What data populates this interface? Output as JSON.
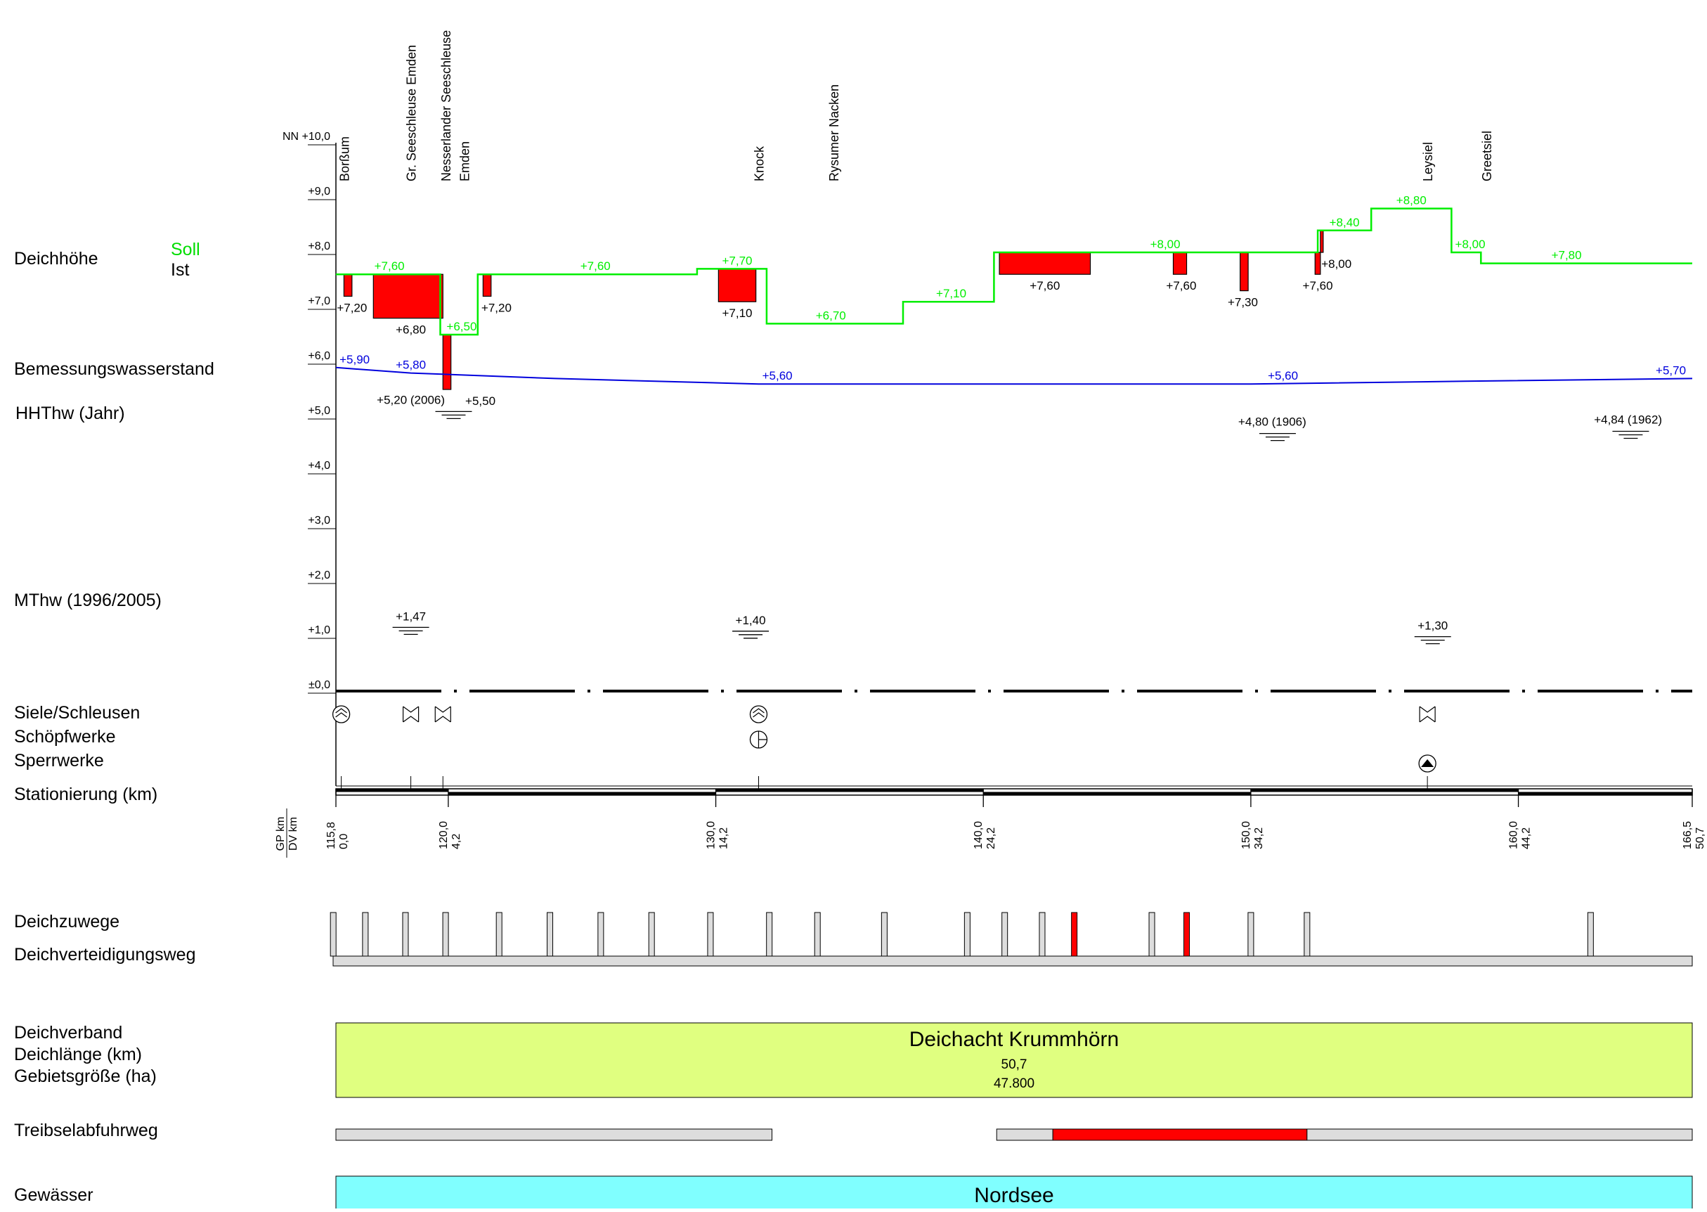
{
  "chart_data": {
    "type": "line",
    "yaxis": {
      "min": 0,
      "max": 10,
      "top_label": "NN +10,0",
      "tick_labels": [
        "±0,0",
        "+1,0",
        "+2,0",
        "+3,0",
        "+4,0",
        "+5,0",
        "+6,0",
        "+7,0",
        "+8,0",
        "+9,0",
        "NN +10,0"
      ]
    },
    "x_range": [
      115.8,
      166.5
    ],
    "row_labels": {
      "deichhoehe": "Deichhöhe",
      "soll": "Soll",
      "ist": "Ist",
      "bemessung": "Bemessungswasserstand",
      "hhthw": "HHThw (Jahr)",
      "mthw": "MThw (1996/2005)",
      "siele": "Siele/Schleusen",
      "schoepfwerke": "Schöpfwerke",
      "sperrwerke": "Sperrwerke",
      "stationierung": "Stationierung (km)",
      "deichzuwege": "Deichzuwege",
      "deichverteidigungsweg": "Deichverteidigungsweg",
      "deichverband": "Deichverband",
      "deichlaenge": "Deichlänge (km)",
      "gebietsgroesse": "Gebietsgröße (ha)",
      "treibsel": "Treibselabfuhrweg",
      "gewaesser": "Gewässer"
    },
    "locations": [
      {
        "name": "Borßum",
        "x": 116.1
      },
      {
        "name": "Gr. Seeschleuse Emden",
        "x": 118.6
      },
      {
        "name": "Nesserlander Seeschleuse",
        "x": 119.9
      },
      {
        "name": "Emden",
        "x": 120.6
      },
      {
        "name": "Knock",
        "x": 131.6
      },
      {
        "name": "Rysumer Nacken",
        "x": 134.4
      },
      {
        "name": "Leysiel",
        "x": 156.6
      },
      {
        "name": "Greetsiel",
        "x": 158.8
      }
    ],
    "soll_series": {
      "name": "Soll",
      "color": "#00ee00",
      "points": [
        [
          115.8,
          7.6
        ],
        [
          119.7,
          7.6
        ],
        [
          119.7,
          6.5
        ],
        [
          121.1,
          6.5
        ],
        [
          121.1,
          7.6
        ],
        [
          129.3,
          7.6
        ],
        [
          129.3,
          7.7
        ],
        [
          131.9,
          7.7
        ],
        [
          131.9,
          6.7
        ],
        [
          137.0,
          6.7
        ],
        [
          137.0,
          7.1
        ],
        [
          140.4,
          7.1
        ],
        [
          140.4,
          8.0
        ],
        [
          152.5,
          8.0
        ],
        [
          152.5,
          8.4
        ],
        [
          154.5,
          8.4
        ],
        [
          154.5,
          8.8
        ],
        [
          157.5,
          8.8
        ],
        [
          157.5,
          8.0
        ],
        [
          158.6,
          8.0
        ],
        [
          158.6,
          7.8
        ],
        [
          166.5,
          7.8
        ]
      ],
      "labels": [
        {
          "text": "+7,60",
          "x": 117.8,
          "y": 7.6
        },
        {
          "text": "+6,50",
          "x": 120.5,
          "y": 6.5
        },
        {
          "text": "+7,60",
          "x": 125.5,
          "y": 7.6
        },
        {
          "text": "+7,70",
          "x": 130.8,
          "y": 7.7
        },
        {
          "text": "+6,70",
          "x": 134.3,
          "y": 6.7
        },
        {
          "text": "+7,10",
          "x": 138.8,
          "y": 7.1
        },
        {
          "text": "+8,00",
          "x": 146.8,
          "y": 8.0
        },
        {
          "text": "+8,40",
          "x": 153.5,
          "y": 8.4
        },
        {
          "text": "+8,80",
          "x": 156.0,
          "y": 8.8
        },
        {
          "text": "+8,00",
          "x": 158.2,
          "y": 8.0
        },
        {
          "text": "+7,80",
          "x": 161.8,
          "y": 7.8
        }
      ]
    },
    "ist_deficits": [
      {
        "x1": 116.1,
        "x2": 116.4,
        "top": 7.6,
        "ist": 7.2,
        "label": "+7,20",
        "lx": 116.4
      },
      {
        "x1": 117.2,
        "x2": 119.8,
        "top": 7.6,
        "ist": 6.8,
        "label": "+6,80",
        "lx": 118.6
      },
      {
        "x1": 119.8,
        "x2": 120.1,
        "top": 6.5,
        "ist": 5.5,
        "label": "+5,50",
        "lx": 121.2
      },
      {
        "x1": 121.3,
        "x2": 121.6,
        "top": 7.6,
        "ist": 7.2,
        "label": "+7,20",
        "lx": 121.8
      },
      {
        "x1": 130.1,
        "x2": 131.5,
        "top": 7.7,
        "ist": 7.1,
        "label": "+7,10",
        "lx": 130.8
      },
      {
        "x1": 140.6,
        "x2": 144.0,
        "top": 8.0,
        "ist": 7.6,
        "label": "+7,60",
        "lx": 142.3
      },
      {
        "x1": 147.1,
        "x2": 147.6,
        "top": 8.0,
        "ist": 7.6,
        "label": "+7,60",
        "lx": 147.4
      },
      {
        "x1": 149.6,
        "x2": 149.9,
        "top": 8.0,
        "ist": 7.3,
        "label": "+7,30",
        "lx": 149.7
      },
      {
        "x1": 152.4,
        "x2": 152.6,
        "top": 8.0,
        "ist": 7.6,
        "label": "+7,60",
        "lx": 152.5
      },
      {
        "x1": 152.6,
        "x2": 152.7,
        "top": 8.4,
        "ist": 8.0,
        "label": "+8,00",
        "lx": 153.2
      }
    ],
    "bemessung_series": {
      "name": "Bemessungswasserstand",
      "color": "#0000dd",
      "points": [
        [
          115.8,
          5.9
        ],
        [
          118.6,
          5.8
        ],
        [
          124,
          5.7
        ],
        [
          131.6,
          5.6
        ],
        [
          142,
          5.6
        ],
        [
          150,
          5.6
        ],
        [
          158,
          5.65
        ],
        [
          166.5,
          5.7
        ]
      ],
      "labels": [
        {
          "text": "+5,90",
          "x": 116.5,
          "y": 5.9
        },
        {
          "text": "+5,80",
          "x": 118.6,
          "y": 5.8
        },
        {
          "text": "+5,60",
          "x": 132.3,
          "y": 5.6
        },
        {
          "text": "+5,60",
          "x": 151.2,
          "y": 5.6
        },
        {
          "text": "+5,70",
          "x": 165.7,
          "y": 5.7
        }
      ]
    },
    "hhthw_markers": [
      {
        "text": "+5,20 (2006)",
        "x": 118.6,
        "y": 5.2,
        "sx": 120.2
      },
      {
        "text": "+4,80 (1906)",
        "x": 150.8,
        "y": 4.8,
        "sx": 151.0
      },
      {
        "text": "+4,84 (1962)",
        "x": 164.1,
        "y": 4.84,
        "sx": 164.2
      }
    ],
    "mthw_markers": [
      {
        "text": "+1,47",
        "x": 118.6,
        "y": 1.47
      },
      {
        "text": "+1,40",
        "x": 131.3,
        "y": 1.4
      },
      {
        "text": "+1,30",
        "x": 156.8,
        "y": 1.3
      }
    ],
    "siele": [
      116.0,
      118.6,
      119.8,
      131.6,
      156.6
    ],
    "schoepfwerke": [
      131.6
    ],
    "sperrwerke": [
      156.6
    ],
    "stations": [
      {
        "gp": "115,8",
        "dv": "0,0",
        "x": 115.8
      },
      {
        "gp": "120,0",
        "dv": "4,2",
        "x": 120.0
      },
      {
        "gp": "130,0",
        "dv": "14,2",
        "x": 130.0
      },
      {
        "gp": "140,0",
        "dv": "24,2",
        "x": 140.0
      },
      {
        "gp": "150,0",
        "dv": "34,2",
        "x": 150.0
      },
      {
        "gp": "160,0",
        "dv": "44,2",
        "x": 160.0
      },
      {
        "gp": "166,5",
        "dv": "50,7",
        "x": 166.5
      }
    ],
    "station_axis_label_gp": "GP km",
    "station_axis_label_dv": "DV km",
    "deichzuwege": [
      {
        "x": 115.7,
        "red": false
      },
      {
        "x": 116.9,
        "red": false
      },
      {
        "x": 118.4,
        "red": false
      },
      {
        "x": 119.9,
        "red": false
      },
      {
        "x": 121.9,
        "red": false
      },
      {
        "x": 123.8,
        "red": false
      },
      {
        "x": 125.7,
        "red": false
      },
      {
        "x": 127.6,
        "red": false
      },
      {
        "x": 129.8,
        "red": false
      },
      {
        "x": 132.0,
        "red": false
      },
      {
        "x": 133.8,
        "red": false
      },
      {
        "x": 136.3,
        "red": false
      },
      {
        "x": 139.4,
        "red": false
      },
      {
        "x": 140.8,
        "red": false
      },
      {
        "x": 142.2,
        "red": false
      },
      {
        "x": 143.4,
        "red": true
      },
      {
        "x": 146.3,
        "red": false
      },
      {
        "x": 147.6,
        "red": true
      },
      {
        "x": 150.0,
        "red": false
      },
      {
        "x": 152.1,
        "red": false
      },
      {
        "x": 162.7,
        "red": false
      }
    ],
    "deichverband": {
      "name": "Deichacht Krummhörn",
      "length": "50,7",
      "area": "47.800",
      "color": "#e0ff80"
    },
    "treibsel": [
      {
        "x1": 115.8,
        "x2": 132.1,
        "red": false
      },
      {
        "x1": 140.5,
        "x2": 142.6,
        "red": false
      },
      {
        "x1": 142.6,
        "x2": 152.1,
        "red": true
      },
      {
        "x1": 152.1,
        "x2": 166.5,
        "red": false
      }
    ],
    "gewaesser": {
      "name": "Nordsee",
      "color": "#80ffff"
    }
  }
}
